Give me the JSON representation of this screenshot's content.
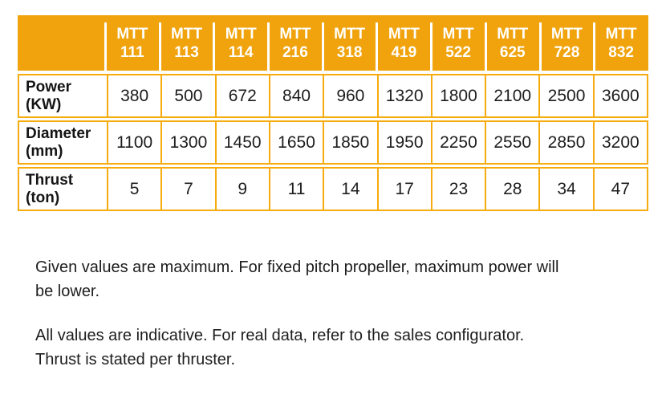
{
  "colors": {
    "accent": "#F0A30C",
    "table_border": "#F6AB0E",
    "header_text": "#FFFFFF",
    "body_text": "#1D1D1D"
  },
  "table": {
    "model_prefix": "MTT",
    "columns": [
      "111",
      "113",
      "114",
      "216",
      "318",
      "419",
      "522",
      "625",
      "728",
      "832"
    ],
    "rows": [
      {
        "label": "Power",
        "unit": "(KW)",
        "values": [
          "380",
          "500",
          "672",
          "840",
          "960",
          "1320",
          "1800",
          "2100",
          "2500",
          "3600"
        ]
      },
      {
        "label": "Diameter",
        "unit": "(mm)",
        "values": [
          "1100",
          "1300",
          "1450",
          "1650",
          "1850",
          "1950",
          "2250",
          "2550",
          "2850",
          "3200"
        ]
      },
      {
        "label": "Thrust",
        "unit": "(ton)",
        "values": [
          "5",
          "7",
          "9",
          "11",
          "14",
          "17",
          "23",
          "28",
          "34",
          "47"
        ]
      }
    ]
  },
  "notes": [
    {
      "lines": [
        "Given values are maximum. For fixed pitch propeller, maximum power will",
        "be lower."
      ]
    },
    {
      "lines": [
        "All values are indicative. For real data, refer to the sales configurator.",
        "Thrust is stated per thruster."
      ]
    }
  ]
}
